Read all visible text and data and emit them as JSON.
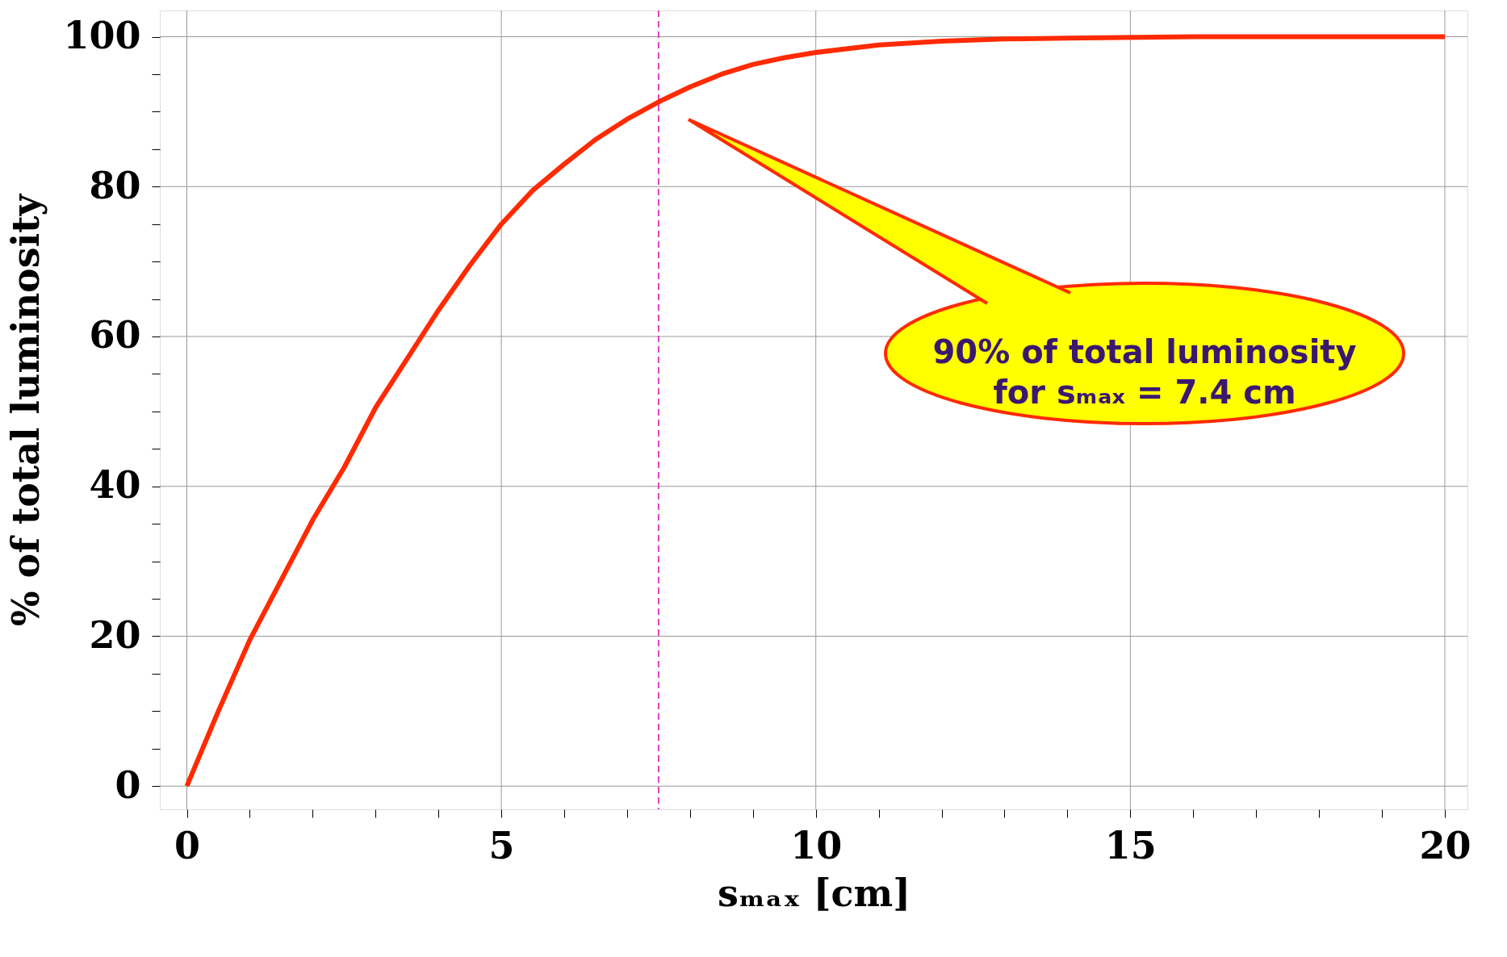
{
  "chart_data": {
    "type": "line",
    "xlabel": "sₘₐₓ [cm]",
    "ylabel": "% of total luminosity",
    "x": [
      0,
      0.5,
      1,
      1.5,
      2,
      2.5,
      3,
      3.5,
      4,
      4.5,
      5,
      5.5,
      6,
      6.5,
      7,
      7.5,
      8,
      8.5,
      9,
      9.5,
      10,
      11,
      12,
      13,
      14,
      16,
      18,
      20
    ],
    "series": [
      {
        "color": "#ff2a00",
        "values": [
          0,
          10,
          19.5,
          27.5,
          35.5,
          42.5,
          50.5,
          57,
          63.5,
          69.5,
          75,
          79.5,
          83,
          86.3,
          89,
          91.3,
          93.3,
          95,
          96.3,
          97.2,
          97.9,
          98.9,
          99.4,
          99.7,
          99.8,
          100,
          100,
          100
        ]
      }
    ],
    "xlim": [
      -0.43,
      20.36
    ],
    "ylim": [
      -3.1,
      103.5
    ],
    "xticks": [
      0,
      {
        "value": 1,
        "label": null
      },
      {
        "value": 2,
        "label": null
      },
      {
        "value": 3,
        "label": null
      },
      {
        "value": 4,
        "label": null
      },
      5,
      {
        "value": 6,
        "label": null
      },
      {
        "value": 7,
        "label": null
      },
      {
        "value": 8,
        "label": null
      },
      {
        "value": 9,
        "label": null
      },
      10,
      {
        "value": 11,
        "label": null
      },
      {
        "value": 12,
        "label": null
      },
      {
        "value": 13,
        "label": null
      },
      {
        "value": 14,
        "label": null
      },
      15,
      {
        "value": 16,
        "label": null
      },
      {
        "value": 17,
        "label": null
      },
      {
        "value": 18,
        "label": null
      },
      {
        "value": 19,
        "label": null
      },
      20
    ],
    "yticks": [
      0,
      {
        "value": 5,
        "label": null
      },
      {
        "value": 10,
        "label": null
      },
      {
        "value": 15,
        "label": null
      },
      20,
      {
        "value": 25,
        "label": null
      },
      {
        "value": 30,
        "label": null
      },
      {
        "value": 35,
        "label": null
      },
      40,
      {
        "value": 45,
        "label": null
      },
      {
        "value": 50,
        "label": null
      },
      {
        "value": 55,
        "label": null
      },
      60,
      {
        "value": 65,
        "label": null
      },
      {
        "value": 70,
        "label": null
      },
      {
        "value": 75,
        "label": null
      },
      80,
      {
        "value": 85,
        "label": null
      },
      {
        "value": 90,
        "label": null
      },
      {
        "value": 95,
        "label": null
      },
      100
    ],
    "grid": true,
    "marker": "none",
    "line_style": "solid",
    "ref_lines": [
      {
        "axis": "x",
        "value": 7.5,
        "color": "#e040c0",
        "line_style": "dashed"
      }
    ],
    "annotations": [
      "90% of total luminosity\nfor sₘₐₓ = 7.4 cm"
    ]
  }
}
